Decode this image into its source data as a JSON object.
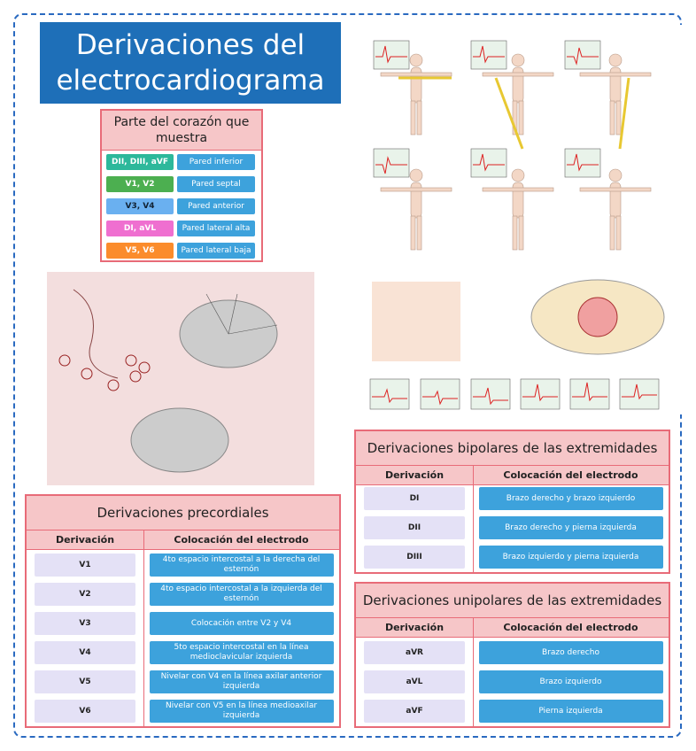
{
  "title": "Derivaciones del electrocardiograma",
  "heart_table": {
    "title": "Parte del corazón que muestra",
    "rows": [
      [
        "DII, DIII, aVF",
        "Pared inferior"
      ],
      [
        "V1, V2",
        "Pared septal"
      ],
      [
        "V3, V4",
        "Pared anterior"
      ],
      [
        "DI, aVL",
        "Pared lateral alta"
      ],
      [
        "V5, V6",
        "Pared lateral baja"
      ]
    ]
  },
  "precordiales": {
    "title": "Derivaciones precordiales",
    "headers": [
      "Derivación",
      "Colocación del electrodo"
    ],
    "rows": [
      [
        "V1",
        "4to espacio intercostal a la derecha del esternón"
      ],
      [
        "V2",
        "4to espacio intercostal a la izquierda del esternón"
      ],
      [
        "V3",
        "Colocación entre V2 y V4"
      ],
      [
        "V4",
        "5to espacio intercostal en la línea medioclavicular izquierda"
      ],
      [
        "V5",
        "Nivelar con V4 en la línea axilar anterior izquierda"
      ],
      [
        "V6",
        "Nivelar con V5 en la línea medioaxilar izquierda"
      ]
    ]
  },
  "bipolares": {
    "title": "Derivaciones bipolares de las extremidades",
    "headers": [
      "Derivación",
      "Colocación del electrodo"
    ],
    "rows": [
      [
        "DI",
        "Brazo derecho y brazo izquierdo"
      ],
      [
        "DII",
        "Brazo derecho y pierna izquierda"
      ],
      [
        "DIII",
        "Brazo izquierdo y pierna izquierda"
      ]
    ]
  },
  "unipolares": {
    "title": "Derivaciones unipolares de las extremidades",
    "headers": [
      "Derivación",
      "Colocación del electrodo"
    ],
    "rows": [
      [
        "aVR",
        "Brazo derecho"
      ],
      [
        "aVL",
        "Brazo izquierdo"
      ],
      [
        "aVF",
        "Pierna izquierda"
      ]
    ]
  }
}
